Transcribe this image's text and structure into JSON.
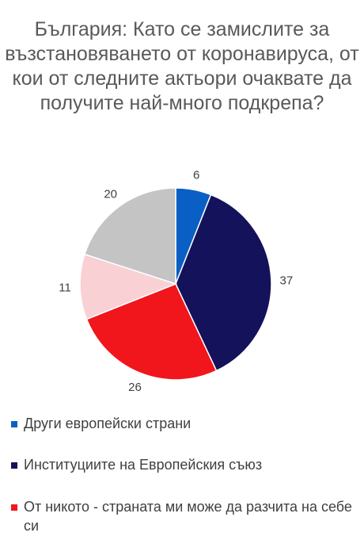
{
  "chart_data": {
    "type": "pie",
    "title": "България: Като се замислите за възстановяването от коронавируса, от кои от следните актьори очаквате да получите най-много подкрепа?",
    "slices": [
      {
        "label": "Други европейски страни",
        "value": 6,
        "color": "#0a5fc4"
      },
      {
        "label": "Институциите на Европейския съюз",
        "value": 37,
        "color": "#14125a"
      },
      {
        "label": "От никото - страната ми може да разчита на себе си",
        "value": 26,
        "color": "#f0161c"
      },
      {
        "label": "",
        "value": 11,
        "color": "#f9d0d4"
      },
      {
        "label": "",
        "value": 20,
        "color": "#c4c4c4"
      }
    ],
    "legend": "bottom"
  }
}
